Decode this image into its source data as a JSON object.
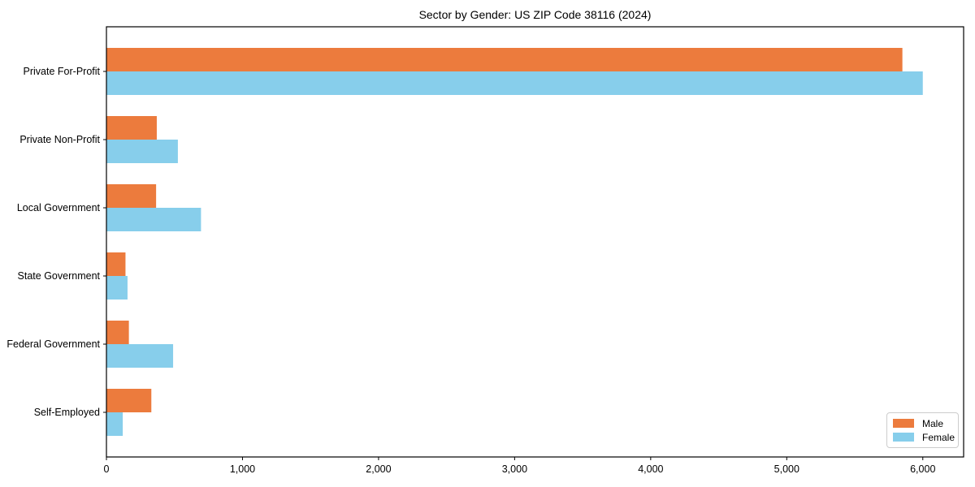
{
  "figure": {
    "background": "#ffffff",
    "axis_color": "#000000",
    "text_color": "#000000"
  },
  "chart_data": {
    "type": "bar",
    "orientation": "horizontal",
    "title": "Sector by Gender: US ZIP Code 38116 (2024)",
    "xlabel": "",
    "ylabel": "",
    "categories": [
      "Private For-Profit",
      "Private Non-Profit",
      "Local Government",
      "State Government",
      "Federal Government",
      "Self-Employed"
    ],
    "series": [
      {
        "name": "Male",
        "color": "#EC7B3D",
        "values": [
          5850,
          370,
          365,
          140,
          165,
          330
        ]
      },
      {
        "name": "Female",
        "color": "#87CEEB",
        "values": [
          6000,
          525,
          695,
          155,
          490,
          120
        ]
      }
    ],
    "xlim": [
      0,
      6300
    ],
    "xticks": [
      0,
      1000,
      2000,
      3000,
      4000,
      5000,
      6000
    ],
    "xtick_labels": [
      "0",
      "1,000",
      "2,000",
      "3,000",
      "4,000",
      "5,000",
      "6,000"
    ],
    "grid": false,
    "legend": {
      "position": "lower right",
      "entries": [
        "Male",
        "Female"
      ]
    }
  }
}
